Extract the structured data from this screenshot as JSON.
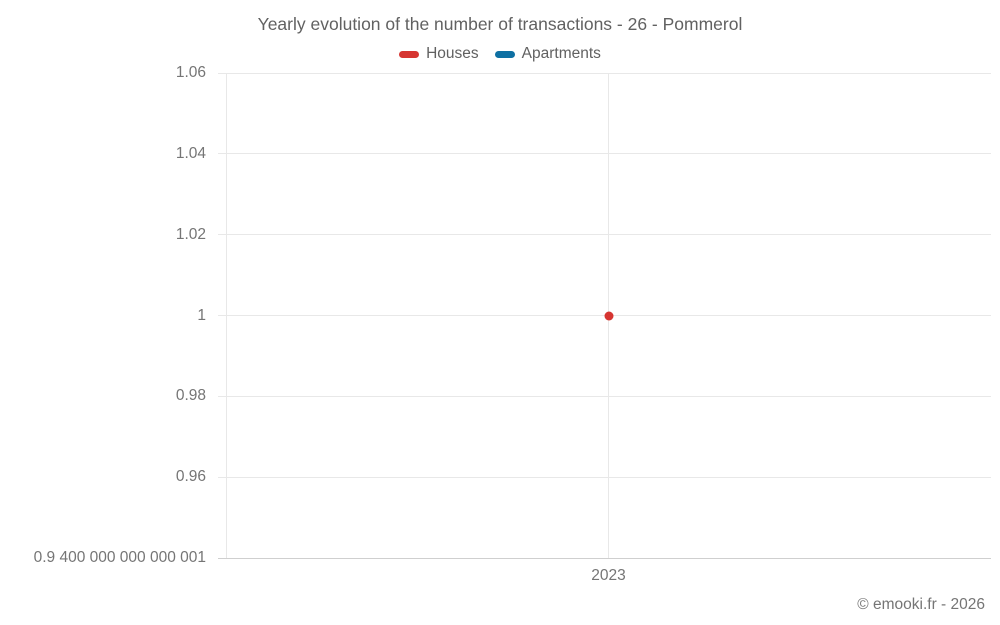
{
  "chart_data": {
    "type": "line",
    "title": "Yearly evolution of the number of transactions - 26 - Pommerol",
    "credit": "© emooki.fr - 2026",
    "legend_position": "top",
    "grid": true,
    "x_axis": {
      "label": "",
      "ticks": [
        {
          "value": 2023,
          "label": "2023"
        }
      ]
    },
    "y_axis": {
      "label": "",
      "range": [
        0.94,
        1.06
      ],
      "ticks": [
        {
          "value": 1.06,
          "label": "1.06"
        },
        {
          "value": 1.04,
          "label": "1.04"
        },
        {
          "value": 1.02,
          "label": "1.02"
        },
        {
          "value": 1.0,
          "label": "1"
        },
        {
          "value": 0.98,
          "label": "0.98"
        },
        {
          "value": 0.96,
          "label": "0.96"
        },
        {
          "value": 0.94,
          "label": "0.9 400 000 000 000 001"
        }
      ]
    },
    "series": [
      {
        "name": "Houses",
        "color": "#d63531",
        "points": [
          {
            "x": 2023,
            "y": 1
          }
        ]
      },
      {
        "name": "Apartments",
        "color": "#0e70a3",
        "points": []
      }
    ]
  }
}
